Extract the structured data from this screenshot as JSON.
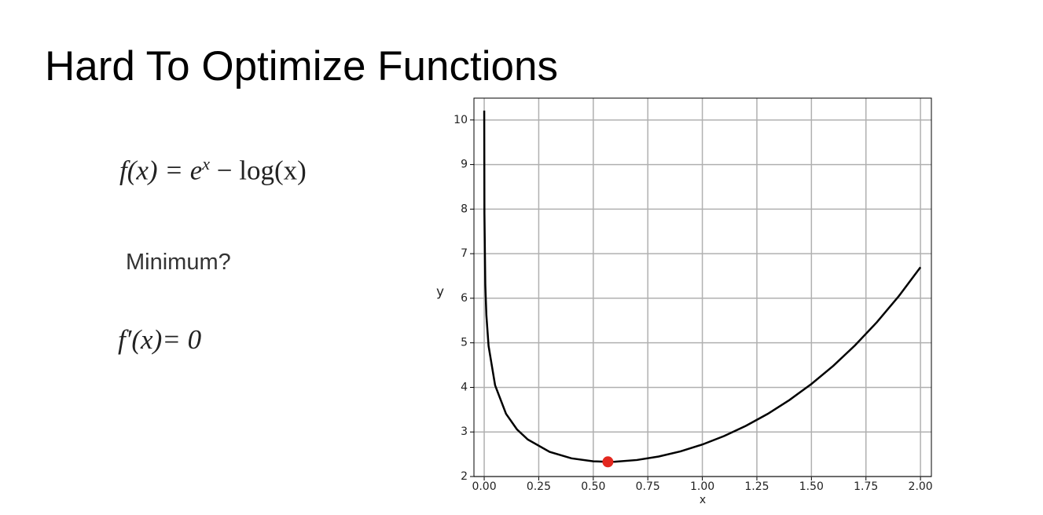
{
  "title": "Hard To Optimize Functions",
  "formula": [
    "f(x) = e",
    "x",
    " − log(x)"
  ],
  "minimum_label": "Minimum?",
  "derivative": "f′(x)= 0",
  "chart_data": {
    "type": "line",
    "x_label": "x",
    "y_label": "y",
    "x": [
      0.0001,
      0.001,
      0.005,
      0.01,
      0.02,
      0.05,
      0.1,
      0.15,
      0.2,
      0.3,
      0.4,
      0.5,
      0.567,
      0.6,
      0.7,
      0.8,
      0.9,
      1.0,
      1.1,
      1.2,
      1.3,
      1.4,
      1.5,
      1.6,
      1.7,
      1.8,
      1.9,
      2.0
    ],
    "values": [
      10.21,
      7.909,
      6.303,
      5.615,
      4.932,
      4.047,
      3.408,
      3.059,
      2.83,
      2.554,
      2.408,
      2.342,
      2.33,
      2.333,
      2.371,
      2.449,
      2.565,
      2.718,
      2.909,
      3.138,
      3.407,
      3.719,
      4.077,
      4.483,
      4.943,
      5.462,
      6.044,
      6.696
    ],
    "color": "#000000",
    "marker": {
      "x": 0.567,
      "y": 2.33,
      "color": "#e3281f"
    },
    "xlim": [
      -0.047,
      2.05
    ],
    "ylim": [
      2.0,
      10.49
    ],
    "xticks": [
      {
        "value": 0,
        "label": "0.00"
      },
      {
        "value": 0.25,
        "label": "0.25"
      },
      {
        "value": 0.5,
        "label": "0.50"
      },
      {
        "value": 0.75,
        "label": "0.75"
      },
      {
        "value": 1,
        "label": "1.00"
      },
      {
        "value": 1.25,
        "label": "1.25"
      },
      {
        "value": 1.5,
        "label": "1.50"
      },
      {
        "value": 1.75,
        "label": "1.75"
      },
      {
        "value": 2,
        "label": "2.00"
      }
    ],
    "yticks": [
      2,
      3,
      4,
      5,
      6,
      7,
      8,
      9,
      10
    ],
    "grid": true
  }
}
